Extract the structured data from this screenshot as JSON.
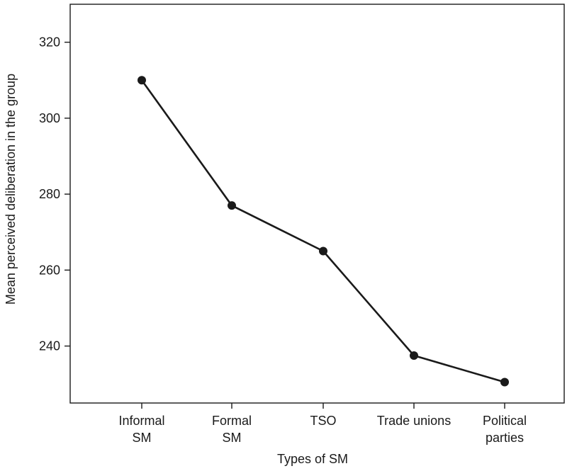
{
  "chart_data": {
    "type": "line",
    "title": "",
    "xlabel": "Types of SM",
    "ylabel": "Mean perceived deliberation in the group",
    "categories": [
      [
        "Informal",
        "SM"
      ],
      [
        "Formal",
        "SM"
      ],
      [
        "TSO"
      ],
      [
        "Trade unions"
      ],
      [
        "Political",
        "parties"
      ]
    ],
    "y_tick_labels": [
      "240",
      "260",
      "280",
      "300",
      "320"
    ],
    "y_ticks": [
      240,
      260,
      280,
      300,
      320
    ],
    "ylim": [
      225,
      330
    ],
    "grid": false,
    "legend": "none",
    "series": [
      {
        "values": [
          310,
          277,
          265,
          237.5,
          230.5
        ]
      }
    ],
    "colors": {
      "line": "#1a1a1a",
      "marker": "#1a1a1a",
      "axis": "#1a1a1a",
      "background": "#ffffff"
    }
  }
}
